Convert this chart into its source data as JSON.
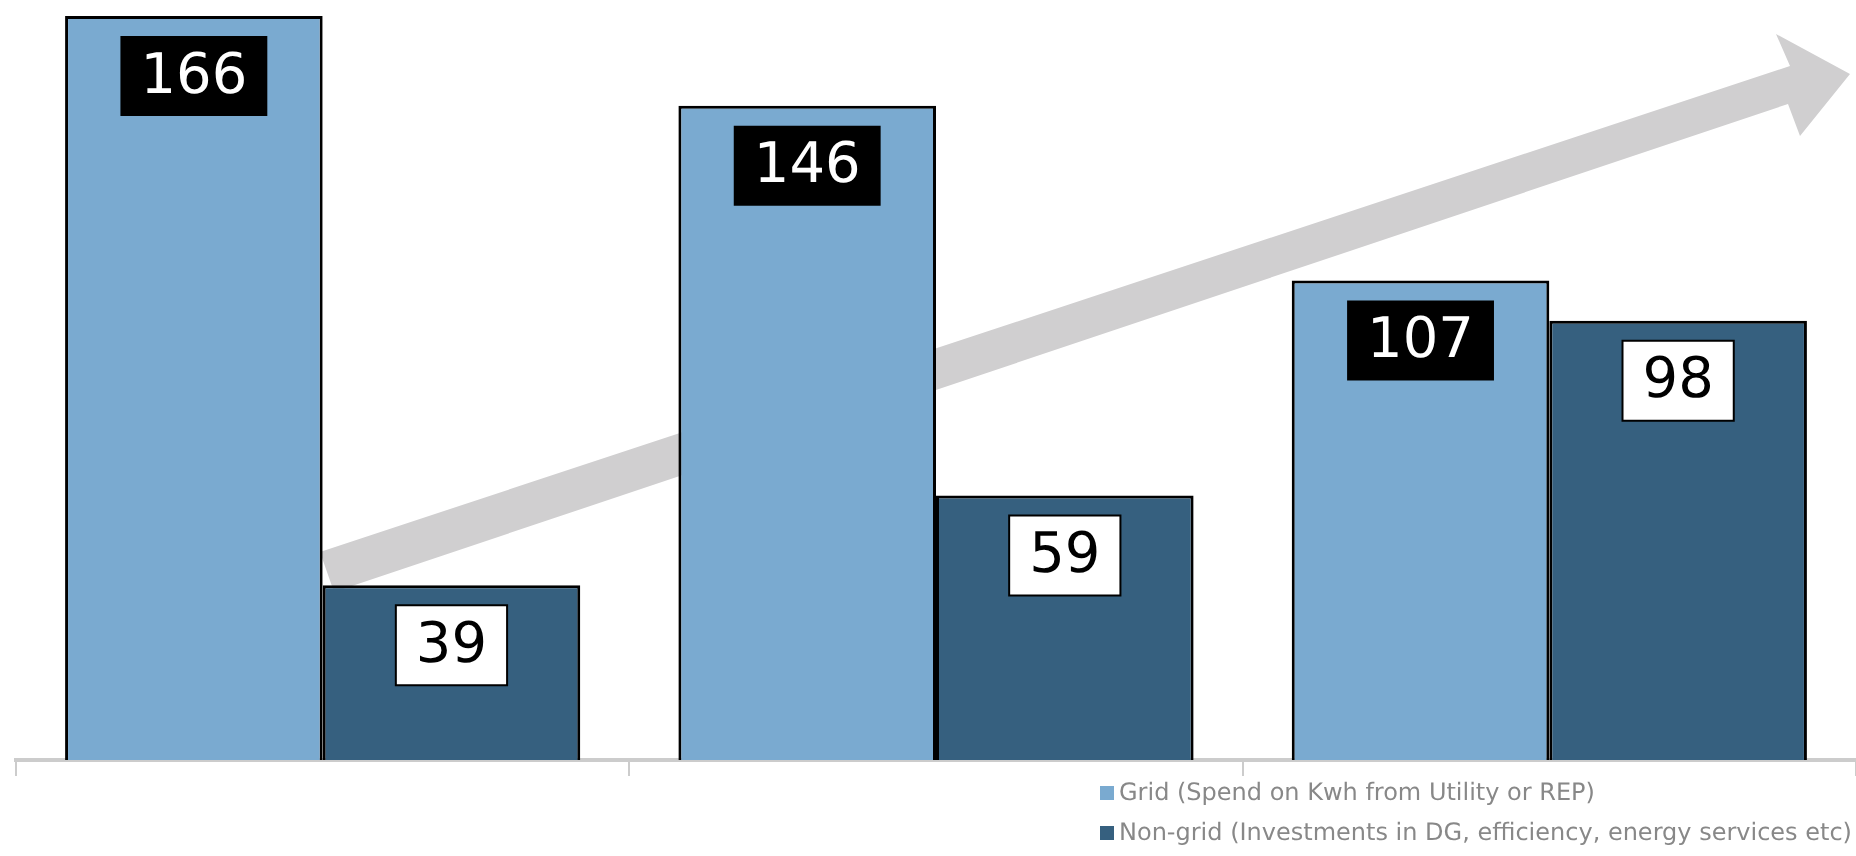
{
  "chart_data": {
    "type": "bar",
    "categories": [
      null,
      null,
      null
    ],
    "series": [
      {
        "name": "Grid (Spend on Kwh from Utility or REP)",
        "color": "#7aaad0",
        "values": [
          166,
          146,
          107
        ]
      },
      {
        "name": "Non-grid (Investments in DG, efficiency, energy services etc)",
        "color": "#36607f",
        "values": [
          39,
          59,
          98
        ]
      }
    ],
    "data_labels": true,
    "legend": "bottom right",
    "grid": false
  }
}
